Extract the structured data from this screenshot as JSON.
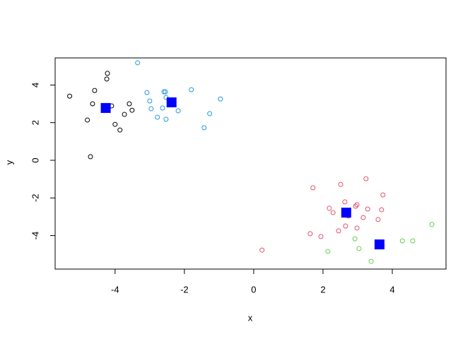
{
  "chart_data": {
    "type": "scatter",
    "xlabel": "x",
    "ylabel": "y",
    "xlim": [
      -5.73,
      5.55
    ],
    "ylim": [
      -5.78,
      5.44
    ],
    "xticks": [
      -4,
      -2,
      0,
      2,
      4
    ],
    "yticks": [
      -4,
      -2,
      0,
      2,
      4
    ],
    "series": [
      {
        "color": "#000000",
        "marker": "circle",
        "x": [
          -5.31,
          -4.59,
          -4.22,
          -4.24,
          -4.65,
          -4.8,
          -4.1,
          -3.59,
          -3.51,
          -3.73,
          -4.0,
          -3.86,
          -4.71
        ],
        "y": [
          3.41,
          3.71,
          4.62,
          4.32,
          3.0,
          2.14,
          2.89,
          3.0,
          2.66,
          2.44,
          1.91,
          1.61,
          0.19
        ]
      },
      {
        "color": "#2297E6",
        "marker": "circle",
        "x": [
          -3.35,
          -3.08,
          -3.0,
          -2.96,
          -2.59,
          -2.55,
          -2.53,
          -2.63,
          -2.78,
          -2.53,
          -2.18,
          -1.8,
          -1.27,
          -0.96,
          -1.43
        ],
        "y": [
          5.18,
          3.6,
          3.15,
          2.74,
          3.64,
          3.64,
          3.34,
          2.78,
          2.29,
          2.18,
          2.63,
          3.75,
          2.48,
          3.26,
          1.73
        ]
      },
      {
        "color": "#DF536B",
        "marker": "circle",
        "x": [
          1.71,
          2.51,
          3.24,
          3.73,
          2.18,
          2.29,
          2.63,
          2.98,
          2.94,
          3.29,
          3.69,
          3.59,
          2.73,
          3.16,
          2.65,
          2.45,
          2.98,
          1.63,
          1.94,
          0.24
        ],
        "y": [
          -1.46,
          -1.28,
          -0.98,
          -1.84,
          -2.55,
          -2.78,
          -2.21,
          -2.36,
          -2.44,
          -2.59,
          -2.63,
          -3.15,
          -2.96,
          -3.04,
          -3.49,
          -3.75,
          -3.6,
          -3.9,
          -4.05,
          -4.77
        ]
      },
      {
        "color": "#61D04F",
        "marker": "circle",
        "x": [
          5.14,
          2.92,
          3.04,
          2.14,
          3.39,
          4.29,
          4.59,
          3.71
        ],
        "y": [
          -3.41,
          -4.17,
          -4.69,
          -4.84,
          -5.37,
          -4.28,
          -4.28,
          -4.54
        ]
      },
      {
        "color": "#0000FF",
        "marker": "square",
        "x": [
          -4.27,
          -2.37,
          2.67,
          3.63
        ],
        "y": [
          2.78,
          3.08,
          -2.78,
          -4.47
        ]
      }
    ]
  }
}
